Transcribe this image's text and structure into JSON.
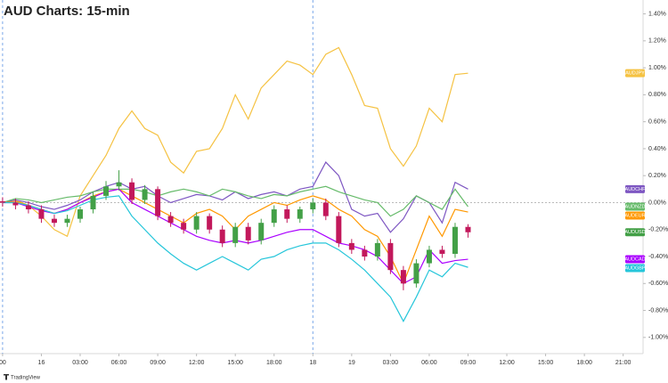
{
  "chart_data": {
    "type": "candlestick",
    "title": "AUD Charts: 15-min",
    "footer": "TradingView",
    "x": [
      -3,
      -2,
      -1,
      0,
      1,
      2,
      3,
      4,
      5,
      6,
      7,
      8,
      9,
      10,
      11,
      12,
      13,
      14,
      15,
      16,
      17,
      18,
      19,
      20,
      21,
      22,
      23,
      24,
      25,
      26,
      27,
      28,
      29,
      30,
      31,
      32,
      33
    ],
    "xlim": [
      -3.2,
      46.4
    ],
    "xticks": [
      {
        "value": -3,
        "label": "00"
      },
      {
        "value": 0,
        "label": "16"
      },
      {
        "value": 3,
        "label": "03:00"
      },
      {
        "value": 6,
        "label": "06:00"
      },
      {
        "value": 9,
        "label": "09:00"
      },
      {
        "value": 12,
        "label": "12:00"
      },
      {
        "value": 15,
        "label": "15:00"
      },
      {
        "value": 18,
        "label": "18:00"
      },
      {
        "value": 21,
        "label": "18"
      },
      {
        "value": 24,
        "label": "19"
      },
      {
        "value": 27,
        "label": "03:00"
      },
      {
        "value": 30,
        "label": "06:00"
      },
      {
        "value": 33,
        "label": "09:00"
      },
      {
        "value": 36,
        "label": "12:00"
      },
      {
        "value": 39,
        "label": "15:00"
      },
      {
        "value": 42,
        "label": "18:00"
      },
      {
        "value": 45,
        "label": "21:00"
      }
    ],
    "session_breaks": [
      -3,
      21
    ],
    "ylim": [
      -1.12,
      1.45
    ],
    "yticks": [
      {
        "value": 1.4,
        "label": "1.40%"
      },
      {
        "value": 1.2,
        "label": "1.20%"
      },
      {
        "value": 1.0,
        "label": "1.00%"
      },
      {
        "value": 0.8,
        "label": "0.80%"
      },
      {
        "value": 0.6,
        "label": "0.60%"
      },
      {
        "value": 0.4,
        "label": "0.40%"
      },
      {
        "value": 0.2,
        "label": "0.20%"
      },
      {
        "value": 0,
        "label": "0.00%"
      },
      {
        "value": -0.2,
        "label": "-0.20%"
      },
      {
        "value": -0.4,
        "label": "-0.40%"
      },
      {
        "value": -0.6,
        "label": "-0.60%"
      },
      {
        "value": -0.8,
        "label": "-0.80%"
      },
      {
        "value": -1.0,
        "label": "-1.00%"
      }
    ],
    "candles": {
      "name": "AUDUSD",
      "up_color": "#43a047",
      "down_color": "#c2185b",
      "open": [
        0.01,
        0,
        -0.02,
        -0.05,
        -0.12,
        -0.15,
        -0.12,
        -0.05,
        0.05,
        0.12,
        0.15,
        0.02,
        0.1,
        -0.1,
        -0.15,
        -0.2,
        -0.1,
        -0.2,
        -0.3,
        -0.18,
        -0.28,
        -0.15,
        -0.05,
        -0.12,
        -0.05,
        0,
        -0.1,
        -0.3,
        -0.35,
        -0.4,
        -0.3,
        -0.5,
        -0.6,
        -0.45,
        -0.35,
        -0.38,
        -0.18
      ],
      "close": [
        0,
        -0.02,
        -0.05,
        -0.12,
        -0.15,
        -0.12,
        -0.05,
        0.05,
        0.12,
        0.15,
        0.02,
        0.1,
        -0.1,
        -0.15,
        -0.2,
        -0.1,
        -0.2,
        -0.3,
        -0.18,
        -0.28,
        -0.15,
        -0.05,
        -0.12,
        -0.05,
        0,
        -0.1,
        -0.3,
        -0.35,
        -0.4,
        -0.3,
        -0.5,
        -0.6,
        -0.45,
        -0.35,
        -0.38,
        -0.18,
        -0.22
      ],
      "high": [
        0.04,
        0.03,
        0.01,
        -0.02,
        -0.09,
        -0.09,
        -0.03,
        0.08,
        0.16,
        0.24,
        0.18,
        0.13,
        0.12,
        -0.07,
        -0.12,
        -0.07,
        -0.08,
        -0.17,
        -0.15,
        -0.15,
        -0.12,
        -0.02,
        -0.02,
        -0.03,
        0.03,
        0.03,
        -0.07,
        -0.27,
        -0.32,
        -0.27,
        -0.27,
        -0.47,
        -0.42,
        -0.32,
        -0.32,
        -0.15,
        -0.16
      ],
      "low": [
        -0.03,
        -0.05,
        -0.08,
        -0.15,
        -0.18,
        -0.18,
        -0.15,
        -0.08,
        0.02,
        0.09,
        -0.01,
        -0.01,
        -0.13,
        -0.18,
        -0.23,
        -0.23,
        -0.23,
        -0.33,
        -0.33,
        -0.31,
        -0.31,
        -0.18,
        -0.15,
        -0.15,
        -0.08,
        -0.13,
        -0.33,
        -0.38,
        -0.43,
        -0.43,
        -0.53,
        -0.65,
        -0.63,
        -0.48,
        -0.41,
        -0.41,
        -0.26
      ]
    },
    "series": [
      {
        "name": "AUDJPY",
        "color": "#f5c242",
        "values": [
          0,
          0.02,
          -0.02,
          -0.1,
          -0.2,
          -0.25,
          0.05,
          0.2,
          0.35,
          0.55,
          0.68,
          0.55,
          0.5,
          0.3,
          0.22,
          0.38,
          0.4,
          0.55,
          0.8,
          0.62,
          0.85,
          0.95,
          1.05,
          1.02,
          0.95,
          1.1,
          1.15,
          0.95,
          0.72,
          0.7,
          0.4,
          0.27,
          0.42,
          0.7,
          0.6,
          0.95,
          0.96
        ]
      },
      {
        "name": "AUDCHF",
        "color": "#7e57c2",
        "values": [
          0,
          0.02,
          0,
          -0.03,
          -0.05,
          -0.02,
          0.02,
          0.08,
          0.12,
          0.15,
          0.1,
          0.12,
          0.05,
          0,
          0.03,
          0.06,
          0.05,
          0.02,
          0.08,
          0.03,
          0.06,
          0.08,
          0.05,
          0.1,
          0.12,
          0.3,
          0.2,
          -0.05,
          -0.1,
          -0.08,
          -0.22,
          -0.12,
          0.05,
          0,
          -0.15,
          0.15,
          0.1
        ]
      },
      {
        "name": "AUDNZD",
        "color": "#66bb6a",
        "values": [
          0,
          0.03,
          0.02,
          0,
          0.02,
          0.04,
          0.05,
          0.08,
          0.1,
          0.1,
          0.1,
          0.08,
          0.05,
          0.08,
          0.1,
          0.08,
          0.05,
          0.1,
          0.08,
          0.05,
          0.03,
          0.06,
          0.05,
          0.08,
          0.1,
          0.12,
          0.08,
          0.05,
          0.02,
          0,
          -0.1,
          -0.05,
          0.05,
          0,
          -0.05,
          0.1,
          -0.03
        ]
      },
      {
        "name": "AUDEUR",
        "color": "#ff9800",
        "values": [
          0,
          0.01,
          -0.02,
          -0.05,
          -0.08,
          -0.05,
          0,
          0.05,
          0.08,
          0.1,
          0.05,
          0,
          -0.05,
          -0.1,
          -0.15,
          -0.08,
          -0.05,
          -0.1,
          -0.2,
          -0.1,
          -0.05,
          0,
          -0.02,
          0.02,
          0.05,
          0.02,
          -0.05,
          -0.1,
          -0.2,
          -0.25,
          -0.4,
          -0.6,
          -0.35,
          -0.1,
          -0.25,
          -0.05,
          -0.07
        ]
      },
      {
        "name": "AUDCAD",
        "color": "#aa00ff",
        "values": [
          0,
          0,
          -0.03,
          -0.06,
          -0.08,
          -0.05,
          0,
          0.04,
          0.08,
          0.1,
          0,
          -0.05,
          -0.1,
          -0.15,
          -0.2,
          -0.25,
          -0.28,
          -0.3,
          -0.28,
          -0.3,
          -0.28,
          -0.25,
          -0.22,
          -0.2,
          -0.2,
          -0.25,
          -0.3,
          -0.32,
          -0.35,
          -0.4,
          -0.5,
          -0.6,
          -0.55,
          -0.35,
          -0.45,
          -0.43,
          -0.42
        ]
      },
      {
        "name": "AUDGBP",
        "color": "#26c6da",
        "values": [
          0,
          0,
          -0.02,
          -0.05,
          -0.08,
          -0.06,
          -0.02,
          0.02,
          0.04,
          0.05,
          -0.1,
          -0.2,
          -0.3,
          -0.38,
          -0.45,
          -0.5,
          -0.45,
          -0.4,
          -0.45,
          -0.5,
          -0.42,
          -0.4,
          -0.35,
          -0.32,
          -0.3,
          -0.3,
          -0.35,
          -0.42,
          -0.5,
          -0.6,
          -0.7,
          -0.88,
          -0.7,
          -0.5,
          -0.55,
          -0.45,
          -0.48
        ]
      }
    ]
  }
}
